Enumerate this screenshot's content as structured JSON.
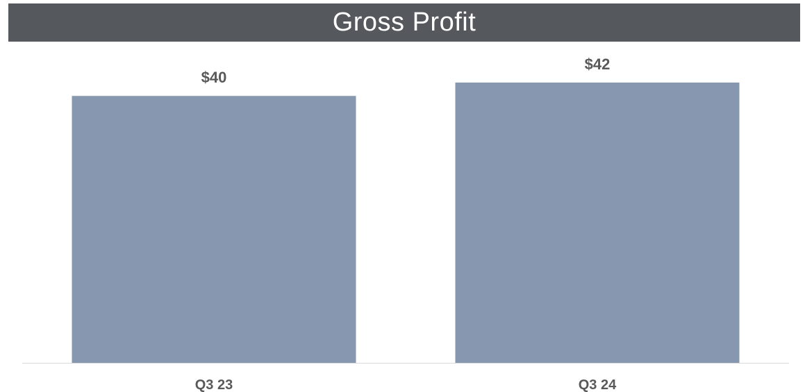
{
  "chart_data": {
    "type": "bar",
    "title": "Gross Profit",
    "categories": [
      "Q3 23",
      "Q3 24"
    ],
    "values": [
      40,
      42
    ],
    "data_labels": [
      "$40",
      "$42"
    ],
    "xlabel": "",
    "ylabel": "",
    "ylim": [
      0,
      42
    ],
    "grid": false,
    "legend": "none",
    "colors": {
      "bar": "#8797b0",
      "title_background": "#55595e",
      "title_text": "#ffffff",
      "label_text": "#595959",
      "baseline": "#d9d9d9"
    }
  }
}
